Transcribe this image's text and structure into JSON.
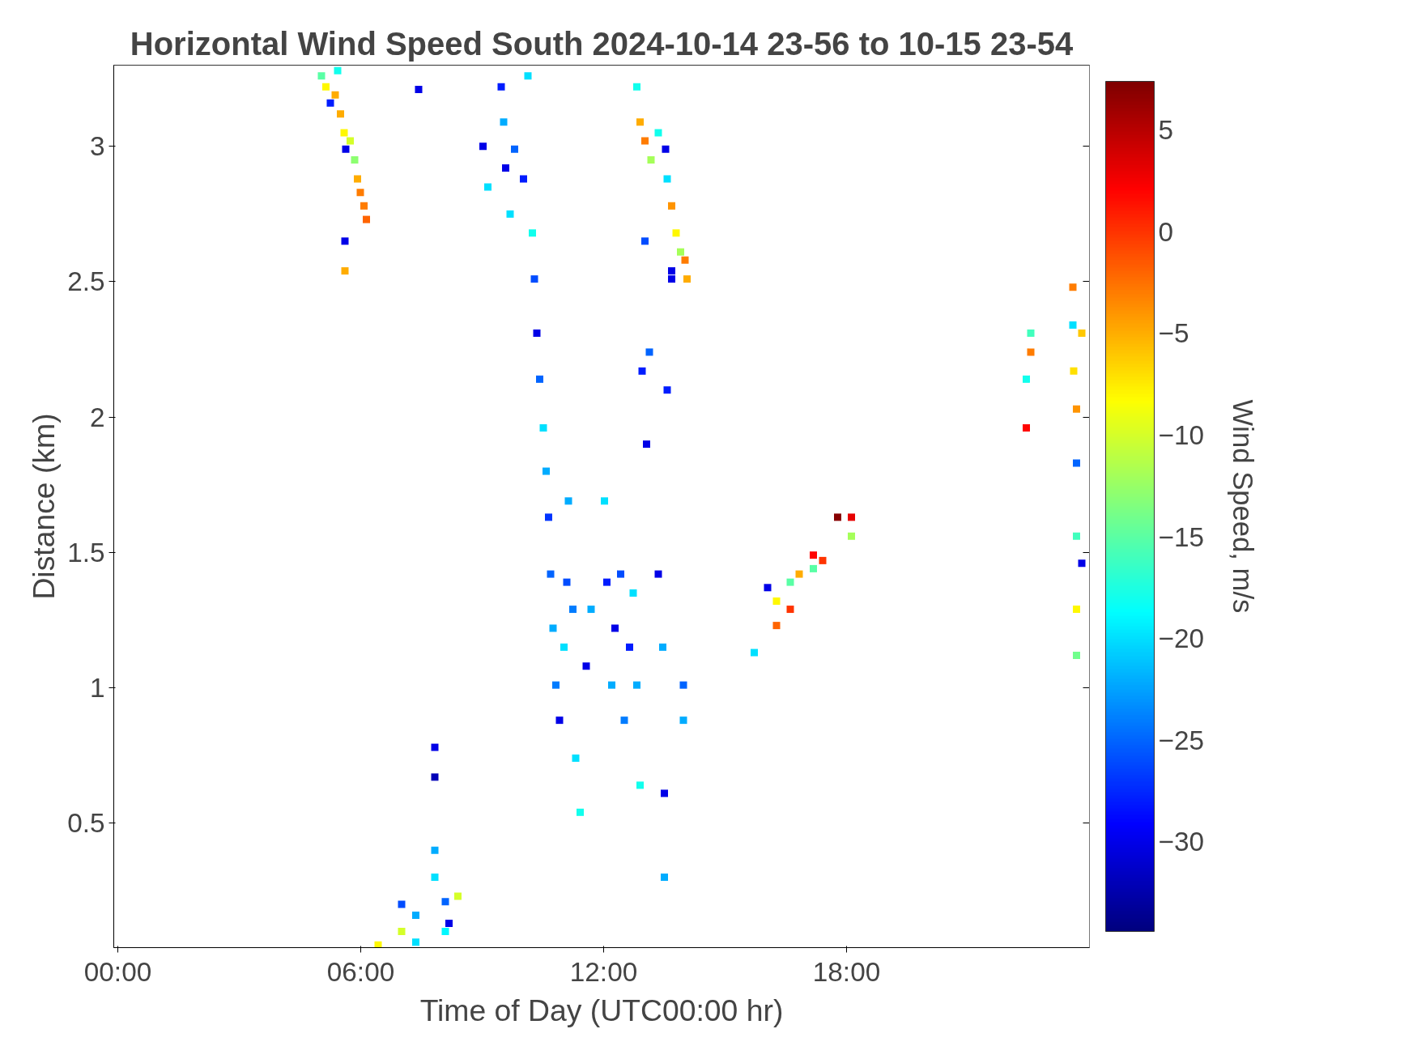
{
  "chart_data": {
    "type": "scatter",
    "title": "Horizontal Wind Speed South 2024-10-14 23-56 to 10-15 23-54",
    "xlabel": "Time of Day (UTC00:00 hr)",
    "ylabel": "Distance (km)",
    "clabel": "Wind Speed, m/s",
    "marker": "square",
    "grid": false,
    "x": [
      5.03,
      5.14,
      5.25,
      5.37,
      5.43,
      5.5,
      5.59,
      5.63,
      5.74,
      5.85,
      5.92,
      5.99,
      6.08,
      6.14,
      5.61,
      5.61,
      7.43,
      6.43,
      7.01,
      7.01,
      7.36,
      7.36,
      7.83,
      7.83,
      7.83,
      7.83,
      8.09,
      8.09,
      8.18,
      8.4,
      9.02,
      9.14,
      9.47,
      9.53,
      9.58,
      9.69,
      9.8,
      10.02,
      10.13,
      10.24,
      10.29,
      10.35,
      10.42,
      10.51,
      10.58,
      10.64,
      10.69,
      10.75,
      10.82,
      10.91,
      11.02,
      11.09,
      11.13,
      11.24,
      11.31,
      11.42,
      11.57,
      11.69,
      12.02,
      12.08,
      12.2,
      12.28,
      12.42,
      12.51,
      12.64,
      12.73,
      12.82,
      12.9,
      12.95,
      13.02,
      13.06,
      13.13,
      13.35,
      13.46,
      13.5,
      13.57,
      13.68,
      13.97,
      13.97,
      13.5,
      12.82,
      12.9,
      13.02,
      13.17,
      13.35,
      13.53,
      13.57,
      13.68,
      13.79,
      13.9,
      14.01,
      14.06,
      13.68,
      15.72,
      16.05,
      16.27,
      16.27,
      16.61,
      16.61,
      16.83,
      17.18,
      17.18,
      17.41,
      17.78,
      18.12,
      18.12,
      22.44,
      22.44,
      22.55,
      22.55,
      23.59,
      23.59,
      23.61,
      23.68,
      23.68,
      23.68,
      23.68,
      23.68,
      23.81,
      23.81
    ],
    "values": [
      3.26,
      3.22,
      3.16,
      3.19,
      3.28,
      3.12,
      3.05,
      2.99,
      3.02,
      2.95,
      2.88,
      2.83,
      2.78,
      2.73,
      2.65,
      2.54,
      3.21,
      0.05,
      0.2,
      0.1,
      0.16,
      0.06,
      0.78,
      0.67,
      0.4,
      0.3,
      0.21,
      0.1,
      0.13,
      0.23,
      3.0,
      2.85,
      3.22,
      3.09,
      2.92,
      2.75,
      2.99,
      2.88,
      3.26,
      2.68,
      2.51,
      2.31,
      2.14,
      1.96,
      1.8,
      1.63,
      1.42,
      1.22,
      1.01,
      0.88,
      1.15,
      1.39,
      1.69,
      1.29,
      0.74,
      0.54,
      1.08,
      1.29,
      1.69,
      1.39,
      1.01,
      1.22,
      1.42,
      0.88,
      1.15,
      1.35,
      1.01,
      0.64,
      2.17,
      2.65,
      1.9,
      2.24,
      1.42,
      1.15,
      0.61,
      2.1,
      2.51,
      1.01,
      0.88,
      0.3,
      3.22,
      3.09,
      3.02,
      2.95,
      3.05,
      2.99,
      2.88,
      2.78,
      2.68,
      2.61,
      2.58,
      2.51,
      2.54,
      1.13,
      1.37,
      1.32,
      1.23,
      1.39,
      1.29,
      1.42,
      1.49,
      1.44,
      1.47,
      1.63,
      1.63,
      1.56,
      2.14,
      1.96,
      2.31,
      2.24,
      2.48,
      2.34,
      2.17,
      2.03,
      1.83,
      1.56,
      1.29,
      1.12,
      2.31,
      1.46
    ],
    "cvalues": [
      -15,
      -8,
      -28,
      -5,
      -18,
      -5,
      -8,
      -30,
      -10,
      -13,
      -5,
      -3,
      -3,
      -2,
      -30,
      -5,
      -30,
      -8,
      -26,
      -10,
      -22,
      -20,
      -30,
      -32,
      -22,
      -20,
      -25,
      -19,
      -30,
      -10,
      -30,
      -20,
      -28,
      -22,
      -30,
      -20,
      -25,
      -28,
      -20,
      -18,
      -26,
      -30,
      -25,
      -20,
      -22,
      -27,
      -25,
      -22,
      -24,
      -30,
      -20,
      -26,
      -22,
      -24,
      -20,
      -18,
      -30,
      -22,
      -20,
      -28,
      -22,
      -30,
      -26,
      -24,
      -28,
      -20,
      -22,
      -18,
      -28,
      -26,
      -30,
      -25,
      -30,
      -22,
      -30,
      -28,
      -30,
      -25,
      -22,
      -22,
      -18,
      -5,
      -3,
      -12,
      -18,
      -30,
      -20,
      -4,
      -8,
      -12,
      -3,
      -5,
      -30,
      -20,
      -30,
      -8,
      -2,
      -15,
      0,
      -5,
      2,
      -15,
      0,
      7,
      3,
      -12,
      -18,
      2,
      -16,
      -3,
      -3,
      -20,
      -7,
      -4,
      -25,
      -16,
      -8,
      -14,
      -6,
      -30
    ],
    "xlim": [
      -0.1,
      24.0
    ],
    "ylim": [
      0.04,
      3.3
    ],
    "xticks": [
      {
        "value": 0,
        "label": "00:00"
      },
      {
        "value": 6,
        "label": "06:00"
      },
      {
        "value": 12,
        "label": "12:00"
      },
      {
        "value": 18,
        "label": "18:00"
      }
    ],
    "yticks": [
      0.5,
      1,
      1.5,
      2,
      2.5,
      3
    ],
    "clim": [
      -34.4,
      7.4
    ],
    "cticks": [
      -30,
      -25,
      -20,
      -15,
      -10,
      -5,
      0,
      5
    ]
  }
}
